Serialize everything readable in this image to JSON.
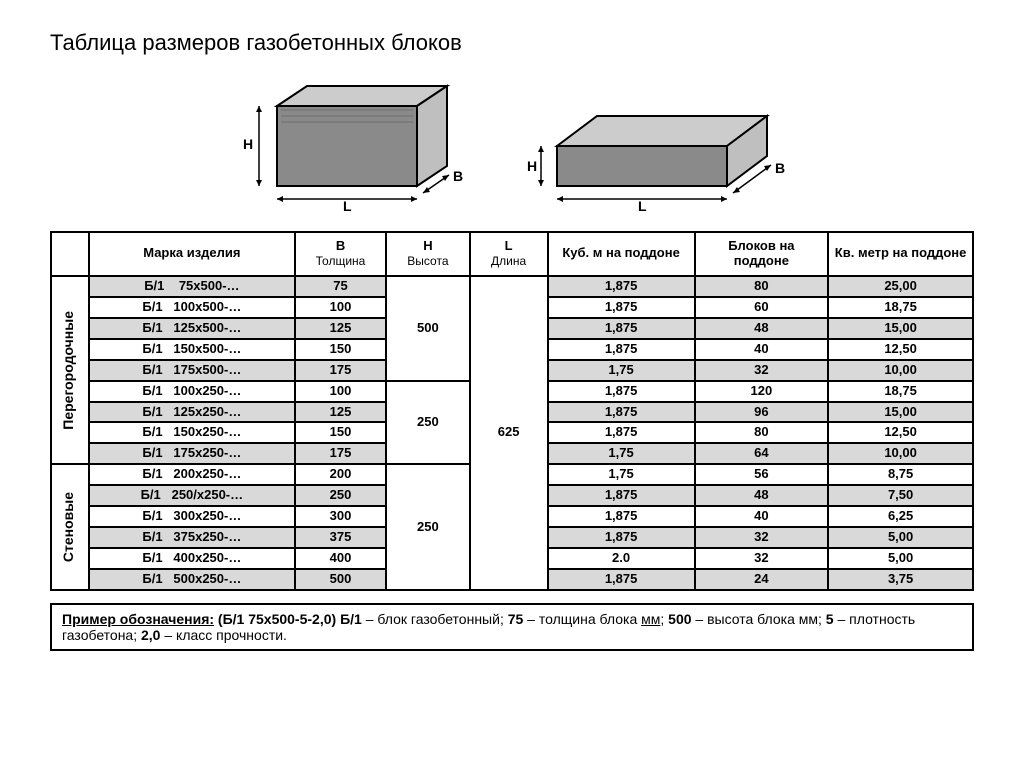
{
  "title": "Таблица размеров газобетонных блоков",
  "diagram_labels": {
    "h": "H",
    "l": "L",
    "b": "B"
  },
  "columns": {
    "category": "",
    "mark": "Марка изделия",
    "b": "В",
    "b_sub": "Толщина",
    "h": "Н",
    "h_sub": "Высота",
    "l": "L",
    "l_sub": "Длина",
    "cubm": "Куб. м на поддоне",
    "blocks": "Блоков на поддоне",
    "sqm": "Кв. метр на поддоне"
  },
  "groups": [
    {
      "label": "Перегородочные",
      "subgroups": [
        {
          "h": "500",
          "l_rows": 9,
          "rows": [
            {
              "mark": "Б/1    75х500-…",
              "b": "75",
              "cubm": "1,875",
              "blocks": "80",
              "sqm": "25,00",
              "shade": true
            },
            {
              "mark": "Б/1   100х500-…",
              "b": "100",
              "cubm": "1,875",
              "blocks": "60",
              "sqm": "18,75",
              "shade": false
            },
            {
              "mark": "Б/1   125х500-…",
              "b": "125",
              "cubm": "1,875",
              "blocks": "48",
              "sqm": "15,00",
              "shade": true
            },
            {
              "mark": "Б/1   150х500-…",
              "b": "150",
              "cubm": "1,875",
              "blocks": "40",
              "sqm": "12,50",
              "shade": false
            },
            {
              "mark": "Б/1   175х500-…",
              "b": "175",
              "cubm": "1,75",
              "blocks": "32",
              "sqm": "10,00",
              "shade": true
            }
          ]
        },
        {
          "h": "250",
          "rows": [
            {
              "mark": "Б/1   100х250-…",
              "b": "100",
              "cubm": "1,875",
              "blocks": "120",
              "sqm": "18,75",
              "shade": false
            },
            {
              "mark": "Б/1   125х250-…",
              "b": "125",
              "cubm": "1,875",
              "blocks": "96",
              "sqm": "15,00",
              "shade": true
            },
            {
              "mark": "Б/1   150х250-…",
              "b": "150",
              "cubm": "1,875",
              "blocks": "80",
              "sqm": "12,50",
              "shade": false
            },
            {
              "mark": "Б/1   175х250-…",
              "b": "175",
              "cubm": "1,75",
              "blocks": "64",
              "sqm": "10,00",
              "shade": true
            }
          ]
        }
      ]
    },
    {
      "label": "Стеновые",
      "subgroups": [
        {
          "h": "250",
          "rows": [
            {
              "mark": "Б/1   200х250-…",
              "b": "200",
              "cubm": "1,75",
              "blocks": "56",
              "sqm": "8,75",
              "shade": false
            },
            {
              "mark": "Б/1   250/х250-…",
              "b": "250",
              "cubm": "1,875",
              "blocks": "48",
              "sqm": "7,50",
              "shade": true
            },
            {
              "mark": "Б/1   300х250-…",
              "b": "300",
              "cubm": "1,875",
              "blocks": "40",
              "sqm": "6,25",
              "shade": false
            },
            {
              "mark": "Б/1   375х250-…",
              "b": "375",
              "cubm": "1,875",
              "blocks": "32",
              "sqm": "5,00",
              "shade": true
            },
            {
              "mark": "Б/1   400х250-…",
              "b": "400",
              "cubm": "2.0",
              "blocks": "32",
              "sqm": "5,00",
              "shade": false
            },
            {
              "mark": "Б/1   500х250-…",
              "b": "500",
              "cubm": "1,875",
              "blocks": "24",
              "sqm": "3,75",
              "shade": true
            }
          ]
        }
      ]
    }
  ],
  "l_value": "625",
  "l_rowspan": 15,
  "note": {
    "label": "Пример обозначения:",
    "example": "(Б/1 75х500-5-2,0)",
    "parts": [
      {
        "key": "Б/1",
        "text": " – блок газобетонный; "
      },
      {
        "key": "75",
        "text": " – толщина блока "
      },
      {
        "key_u": "мм",
        "text": "; "
      },
      {
        "key": "500",
        "text": " – высота блока мм; "
      },
      {
        "key": "5",
        "text": " – плотность газобетона; "
      },
      {
        "key": "2,0",
        "text": " – класс прочности."
      }
    ]
  },
  "colors": {
    "border": "#000000",
    "shade": "#d9d9d9",
    "bg": "#ffffff",
    "block_fill": "#8a8a8a",
    "block_top": "#cccccc",
    "block_side": "#bfbfbf"
  }
}
